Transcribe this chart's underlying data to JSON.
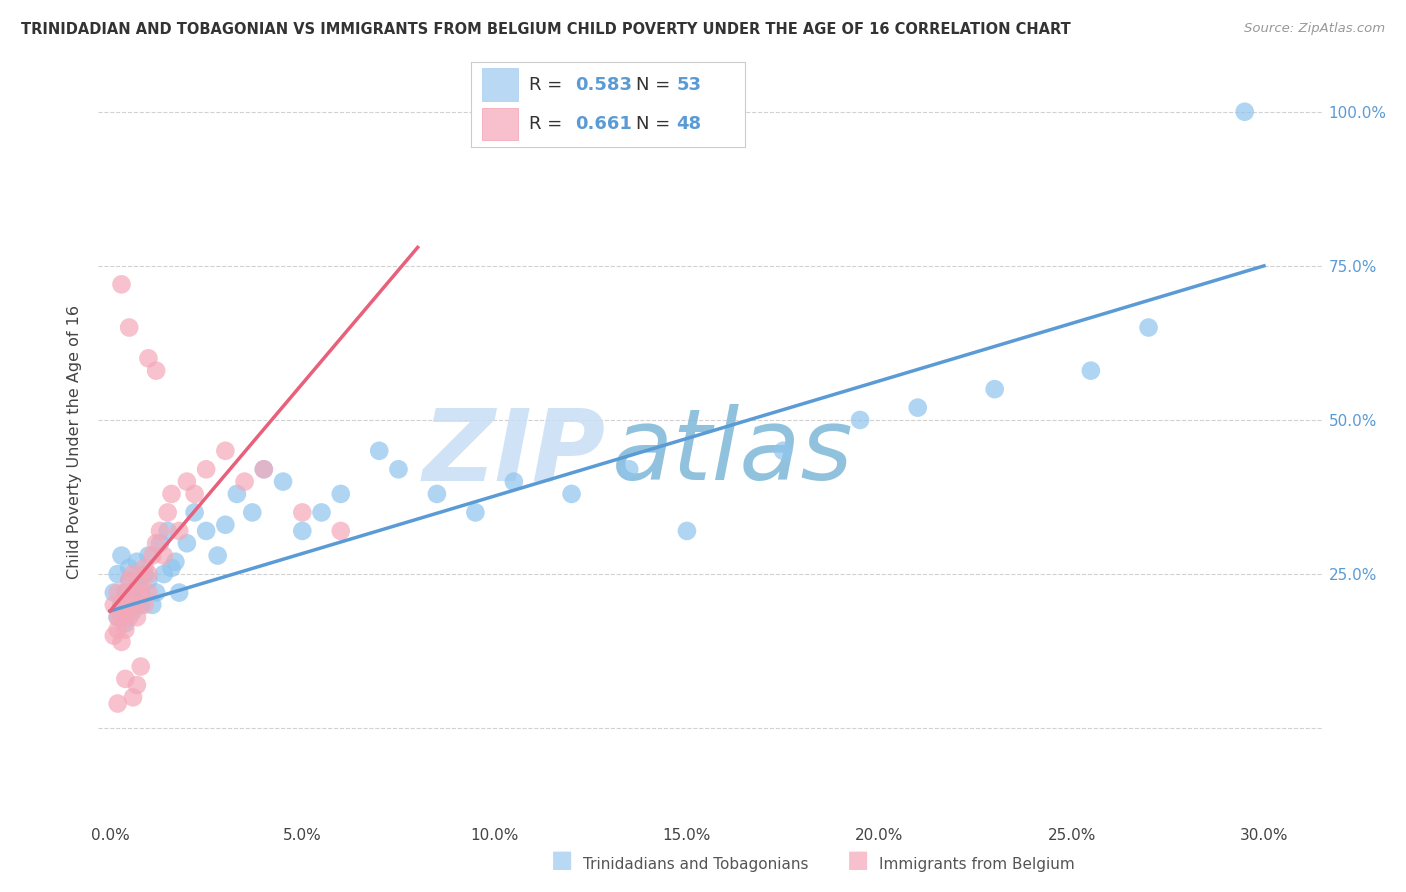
{
  "title": "TRINIDADIAN AND TOBAGONIAN VS IMMIGRANTS FROM BELGIUM CHILD POVERTY UNDER THE AGE OF 16 CORRELATION CHART",
  "source": "Source: ZipAtlas.com",
  "ylabel": "Child Poverty Under the Age of 16",
  "xlabel_ticks": [
    "0.0%",
    "5.0%",
    "10.0%",
    "15.0%",
    "20.0%",
    "25.0%",
    "30.0%"
  ],
  "xlabel_vals": [
    0.0,
    5.0,
    10.0,
    15.0,
    20.0,
    25.0,
    30.0
  ],
  "ytick_vals": [
    0,
    25,
    50,
    75,
    100
  ],
  "ytick_labels": [
    "",
    "25.0%",
    "50.0%",
    "75.0%",
    "100.0%"
  ],
  "series1_name": "Trinidadians and Tobagonians",
  "series1_color": "#8fc4ed",
  "series1_R": 0.583,
  "series1_N": 53,
  "series2_name": "Immigrants from Belgium",
  "series2_color": "#f4a8b8",
  "series2_R": 0.661,
  "series2_N": 48,
  "watermark_zip": "ZIP",
  "watermark_atlas": "atlas",
  "watermark_color_zip": "#c8dff5",
  "watermark_color_atlas": "#7eb8d8",
  "trendline1_color": "#5b9bd5",
  "trendline2_color": "#e8607a",
  "background_color": "#ffffff",
  "grid_color": "#cccccc",
  "legend_box_color1": "#b8d8f4",
  "legend_box_color2": "#f8c0cc",
  "tick_color": "#5b9bd5",
  "title_color": "#333333",
  "source_color": "#999999"
}
